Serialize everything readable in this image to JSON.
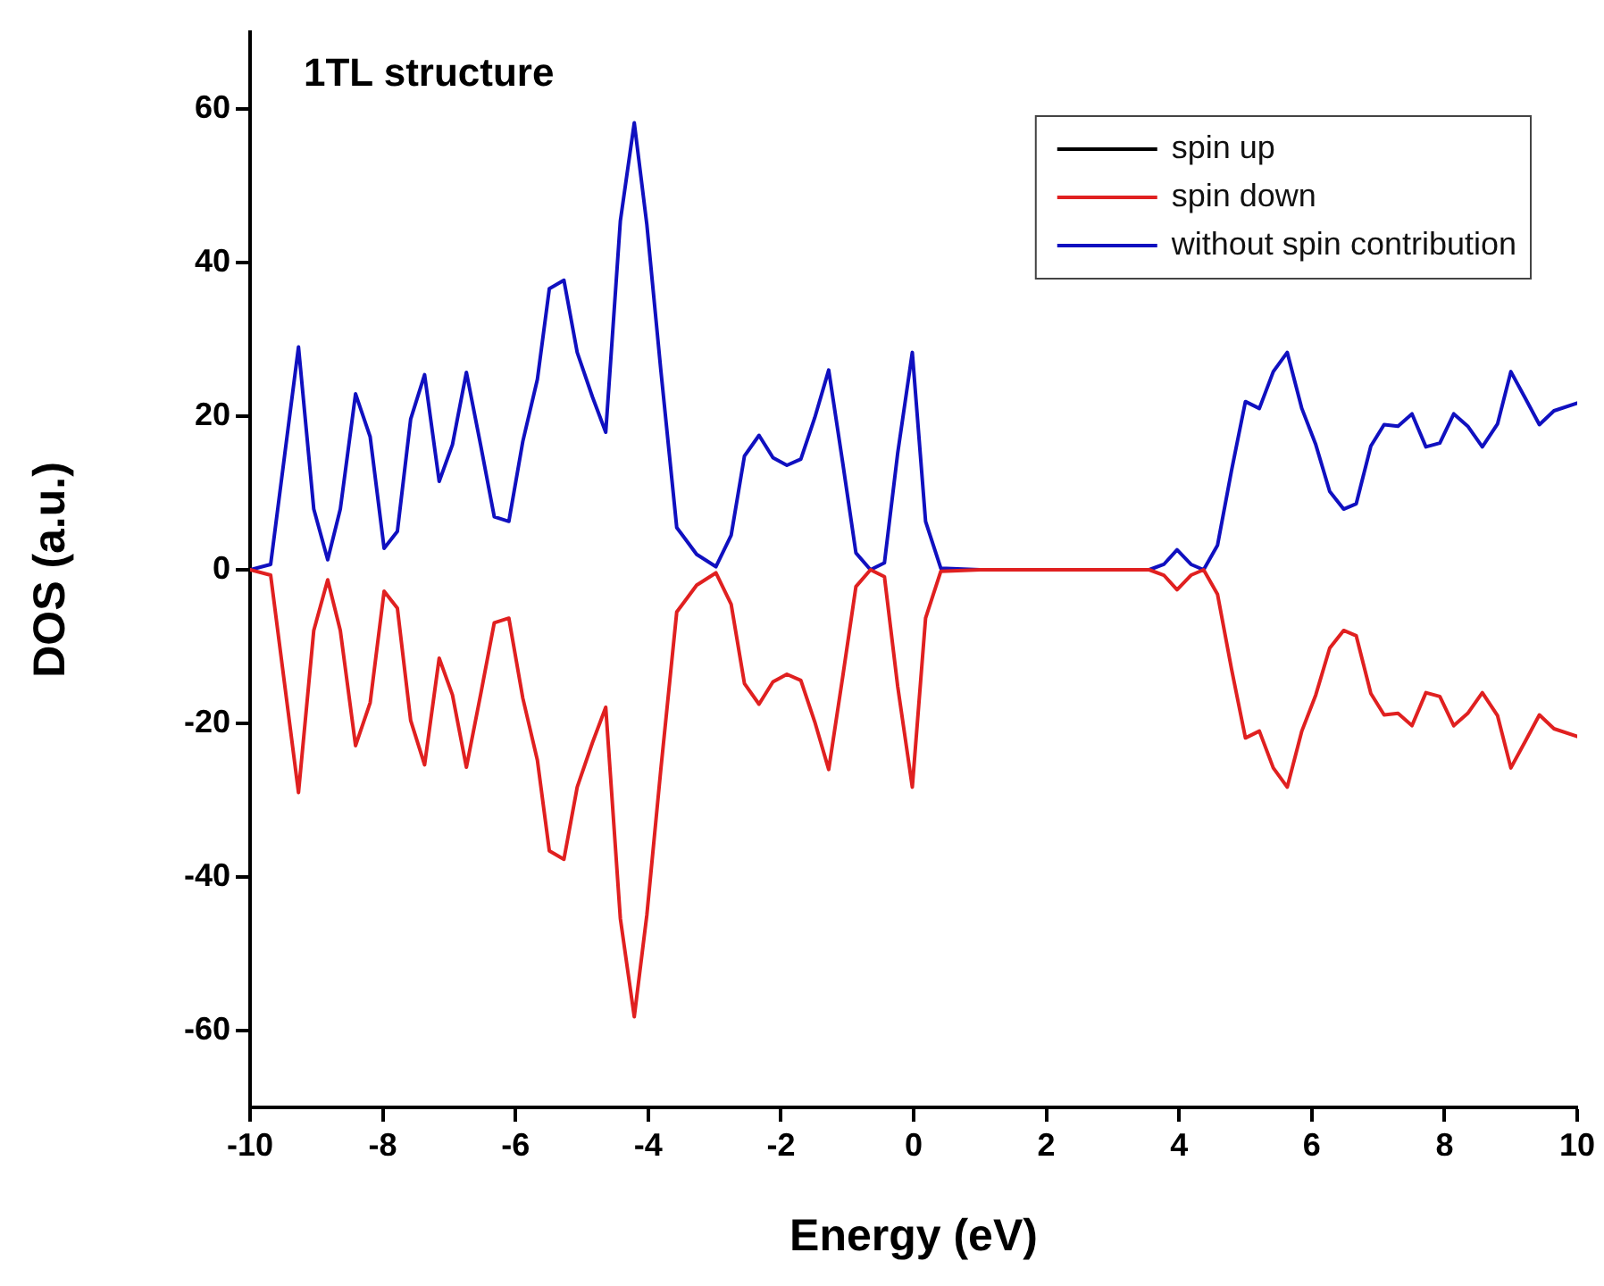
{
  "chart_data": {
    "type": "line",
    "title": "1TL structure",
    "xlabel": "Energy (eV)",
    "ylabel": "DOS (a.u.)",
    "x": [
      -10,
      -9.69,
      -9.27,
      -9.04,
      -8.83,
      -8.64,
      -8.41,
      -8.19,
      -7.98,
      -7.78,
      -7.58,
      -7.37,
      -7.15,
      -6.95,
      -6.74,
      -6.52,
      -6.32,
      -6.1,
      -5.89,
      -5.67,
      -5.49,
      -5.27,
      -5.07,
      -4.84,
      -4.64,
      -4.42,
      -4.21,
      -4.02,
      -3.81,
      -3.57,
      -3.27,
      -2.98,
      -2.75,
      -2.55,
      -2.33,
      -2.12,
      -1.91,
      -1.7,
      -1.49,
      -1.28,
      -1.07,
      -0.87,
      -0.65,
      -0.44,
      -0.24,
      -0.02,
      0.18,
      0.41,
      1,
      2,
      3,
      3.55,
      3.77,
      3.97,
      4.18,
      4.37,
      4.58,
      4.79,
      5,
      5.21,
      5.42,
      5.63,
      5.85,
      6.06,
      6.27,
      6.48,
      6.67,
      6.89,
      7.09,
      7.3,
      7.51,
      7.72,
      7.93,
      8.14,
      8.35,
      8.57,
      8.8,
      9,
      9.22,
      9.43,
      9.65,
      10
    ],
    "series": [
      {
        "name": "spin up",
        "color": "#000000",
        "values": [
          null,
          null,
          null,
          null,
          null,
          null,
          null,
          null,
          null,
          null,
          null,
          null,
          null,
          null,
          null,
          null,
          null,
          null,
          null,
          null,
          null,
          null,
          null,
          null,
          null,
          null,
          null,
          null,
          null,
          null,
          null,
          null,
          null,
          null,
          null,
          null,
          null,
          null,
          null,
          null,
          null,
          null,
          null,
          null,
          null,
          null,
          null,
          null,
          null,
          null,
          null,
          null,
          null,
          null,
          null,
          null,
          null,
          null,
          null,
          null,
          null,
          null,
          null,
          null,
          null,
          null,
          null,
          null,
          null,
          null,
          null,
          null,
          null,
          null,
          null,
          null,
          null,
          null,
          null,
          null,
          null,
          null
        ]
      },
      {
        "name": "spin down",
        "color": "#e02020",
        "values": [
          0,
          -0.7,
          -29,
          -7.9,
          -1.3,
          -7.9,
          -22.9,
          -17.3,
          -2.8,
          -5,
          -19.6,
          -25.4,
          -11.5,
          -16.3,
          -25.7,
          -16,
          -6.9,
          -6.3,
          -16.7,
          -24.8,
          -36.6,
          -37.7,
          -28.3,
          -22.5,
          -17.9,
          -45.4,
          -58.2,
          -44.9,
          -26,
          -5.5,
          -2,
          -0.4,
          -4.5,
          -14.8,
          -17.5,
          -14.6,
          -13.6,
          -14.4,
          -19.8,
          -26,
          -14,
          -2.2,
          0,
          -0.9,
          -15.2,
          -28.3,
          -6.3,
          -0.2,
          0,
          0,
          0,
          0,
          -0.7,
          -2.6,
          -0.7,
          0,
          -3.2,
          -12.9,
          -21.9,
          -21,
          -25.8,
          -28.3,
          -21,
          -16.3,
          -10.2,
          -7.9,
          -8.6,
          -16.1,
          -18.9,
          -18.7,
          -20.3,
          -16,
          -16.5,
          -20.3,
          -18.7,
          -16,
          -19,
          -25.8,
          -22.3,
          -18.9,
          -20.7,
          -21.7
        ]
      },
      {
        "name": "without spin contribution",
        "color": "#1010c0",
        "values": [
          0,
          0.7,
          29,
          7.9,
          1.3,
          7.9,
          22.9,
          17.3,
          2.8,
          5,
          19.6,
          25.4,
          11.5,
          16.3,
          25.7,
          16,
          6.9,
          6.3,
          16.7,
          24.8,
          36.6,
          37.7,
          28.3,
          22.5,
          17.9,
          45.4,
          58.2,
          44.9,
          26,
          5.5,
          2,
          0.4,
          4.5,
          14.8,
          17.5,
          14.6,
          13.6,
          14.4,
          19.8,
          26,
          14,
          2.2,
          0,
          0.9,
          15.2,
          28.3,
          6.3,
          0.2,
          0,
          0,
          0,
          0,
          0.7,
          2.6,
          0.7,
          0,
          3.2,
          12.9,
          21.9,
          21,
          25.8,
          28.3,
          21,
          16.3,
          10.2,
          7.9,
          8.6,
          16.1,
          18.9,
          18.7,
          20.3,
          16,
          16.5,
          20.3,
          18.7,
          16,
          19,
          25.8,
          22.3,
          18.9,
          20.7,
          21.7
        ]
      }
    ],
    "xlim": [
      -10,
      10
    ],
    "xticks": [
      -10,
      -8,
      -6,
      -4,
      -2,
      0,
      2,
      4,
      6,
      8,
      10
    ],
    "ylim": [
      -70,
      70
    ],
    "yticks": [
      -60,
      -40,
      -20,
      0,
      20,
      40,
      60
    ],
    "grid": false,
    "legend": "top right",
    "marker": "none",
    "line_style": "solid"
  }
}
